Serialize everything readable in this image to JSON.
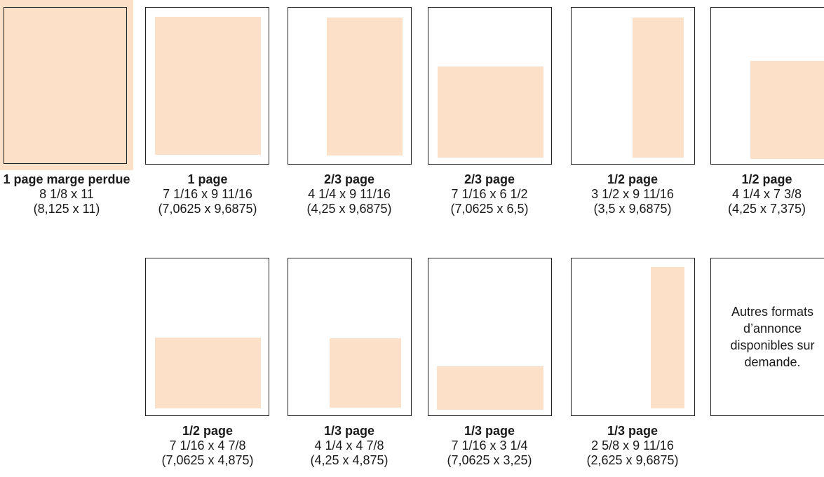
{
  "formats": [
    {
      "title": "1 page marge perdue",
      "size": "8 1/8 x 11",
      "decimal": "(8,125 x 11)",
      "fill_width_in": 8.125,
      "fill_height_in": 11
    },
    {
      "title": "1 page",
      "size": "7 1/16 x 9 11/16",
      "decimal": "(7,0625 x 9,6875)",
      "fill_width_in": 7.0625,
      "fill_height_in": 9.6875
    },
    {
      "title": "2/3 page",
      "size": "4 1/4 x 9 11/16",
      "decimal": "(4,25 x 9,6875)",
      "fill_width_in": 4.25,
      "fill_height_in": 9.6875
    },
    {
      "title": "2/3 page",
      "size": "7 1/16 x 6 1/2",
      "decimal": "(7,0625 x 6,5)",
      "fill_width_in": 7.0625,
      "fill_height_in": 6.5
    },
    {
      "title": "1/2 page",
      "size": "3 1/2 x 9 11/16",
      "decimal": "(3,5 x 9,6875)",
      "fill_width_in": 3.5,
      "fill_height_in": 9.6875
    },
    {
      "title": "1/2 page",
      "size": "4 1/4 x 7 3/8",
      "decimal": "(4,25 x 7,375)",
      "fill_width_in": 4.25,
      "fill_height_in": 7.375
    },
    {
      "title": "1/2 page",
      "size": "7 1/16 x 4 7/8",
      "decimal": "(7,0625 x 4,875)",
      "fill_width_in": 7.0625,
      "fill_height_in": 4.875
    },
    {
      "title": "1/3 page",
      "size": "4 1/4 x 4 7/8",
      "decimal": "(4,25 x 4,875)",
      "fill_width_in": 4.25,
      "fill_height_in": 4.875
    },
    {
      "title": "1/3 page",
      "size": "7 1/16 x 3 1/4",
      "decimal": "(7,0625 x 3,25)",
      "fill_width_in": 7.0625,
      "fill_height_in": 3.25
    },
    {
      "title": "1/3 page",
      "size": "2 5/8 x 9 11/16",
      "decimal": "(2,625 x 9,6875)",
      "fill_width_in": 2.625,
      "fill_height_in": 9.6875
    }
  ],
  "note": "Autres formats d’annonce disponibles sur demande.",
  "colors": {
    "ad_fill": "#fde0c8",
    "frame": "#222222"
  }
}
